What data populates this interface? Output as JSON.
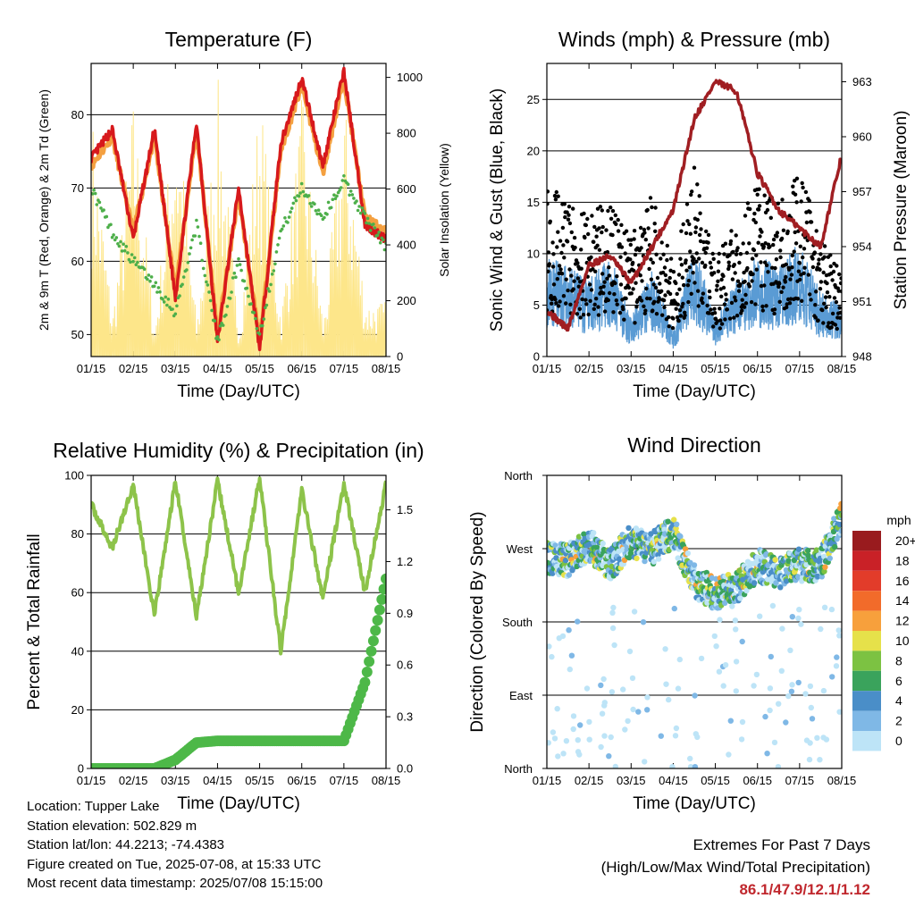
{
  "colors": {
    "temp2m": "#d7191c",
    "temp9m": "#f4a040",
    "dewpoint": "#4daf4a",
    "solar": "#fde68a",
    "wind": "#5a9bd4",
    "gust": "#000000",
    "pressure": "#a01e22",
    "rh": "#8dc34a",
    "precip": "#4db848",
    "extremes": "#c0272d"
  },
  "time_ticks": [
    "01/15",
    "02/15",
    "03/15",
    "04/15",
    "05/15",
    "06/15",
    "07/15",
    "08/15"
  ],
  "chart_data": [
    {
      "type": "line",
      "title": "Temperature (F)",
      "xlabel": "Time (Day/UTC)",
      "ylabel": "2m & 9m T (Red, Orange) & 2m Td (Green)",
      "y2label": "Solar Insolation (Yellow)",
      "ylim": [
        47,
        87
      ],
      "y2lim": [
        0,
        1050
      ],
      "yticks": [
        50,
        60,
        70,
        80
      ],
      "y2ticks": [
        0,
        200,
        400,
        600,
        800,
        1000
      ],
      "x": [
        0,
        0.5,
        1,
        1.5,
        2,
        2.5,
        3,
        3.5,
        4,
        4.5,
        5,
        5.5,
        6,
        6.5,
        7
      ],
      "series": [
        {
          "name": "2m T",
          "values": [
            74,
            78,
            63,
            78,
            55,
            79,
            49,
            70,
            48,
            76,
            85,
            73,
            86,
            65,
            63
          ]
        },
        {
          "name": "9m T",
          "values": [
            73,
            77,
            64,
            77,
            56,
            78,
            50,
            69,
            49,
            75,
            84,
            72,
            85,
            66,
            64
          ]
        },
        {
          "name": "2m Td",
          "values": [
            70,
            64,
            60,
            57,
            53,
            65,
            49,
            60,
            50,
            64,
            70,
            66,
            71,
            66,
            62
          ]
        },
        {
          "name": "Solar Insolation",
          "values": [
            900,
            150,
            950,
            100,
            990,
            120,
            1000,
            100,
            980,
            150,
            950,
            120,
            940,
            200,
            200
          ]
        }
      ]
    },
    {
      "type": "scatter",
      "title": "Winds (mph) & Pressure (mb)",
      "xlabel": "Time (Day/UTC)",
      "ylabel": "Sonic Wind & Gust (Blue, Black)",
      "y2label": "Station Pressure (Maroon)",
      "ylim": [
        0,
        28.5
      ],
      "y2lim": [
        948,
        964
      ],
      "yticks": [
        0,
        5,
        10,
        15,
        20,
        25
      ],
      "y2ticks": [
        948,
        951,
        954,
        957,
        960,
        963
      ],
      "x": [
        0,
        0.5,
        1,
        1.5,
        2,
        2.5,
        3,
        3.5,
        4,
        4.5,
        5,
        5.5,
        6,
        6.5,
        7
      ],
      "series": [
        {
          "name": "Sonic Wind",
          "values": [
            8,
            7,
            6,
            8,
            3,
            7,
            2,
            9,
            3,
            6,
            8,
            7,
            9,
            5,
            4
          ]
        },
        {
          "name": "Gust",
          "values": [
            15,
            13,
            12,
            14,
            10,
            14,
            8,
            16,
            8,
            12,
            15,
            13,
            16,
            10,
            7
          ]
        },
        {
          "name": "Station Pressure",
          "values": [
            950.5,
            949.5,
            953,
            953.5,
            952,
            954,
            956,
            961,
            963,
            962.5,
            958,
            956,
            955,
            954,
            959
          ]
        }
      ]
    },
    {
      "type": "line",
      "title": "Relative Humidity (%) & Precipitation (in)",
      "xlabel": "Time (Day/UTC)",
      "ylabel": "Percent & Total Rainfall",
      "ylim": [
        0,
        100
      ],
      "y2lim": [
        0,
        1.7
      ],
      "yticks": [
        0,
        20,
        40,
        60,
        80,
        100
      ],
      "y2ticks": [
        "0.0",
        "0.3",
        "0.6",
        "0.9",
        "1.2",
        "1.5"
      ],
      "x": [
        0,
        0.5,
        1,
        1.5,
        2,
        2.5,
        3,
        3.5,
        4,
        4.5,
        5,
        5.5,
        6,
        6.5,
        7
      ],
      "series": [
        {
          "name": "Relative Humidity",
          "values": [
            90,
            75,
            97,
            52,
            98,
            52,
            98,
            60,
            99,
            40,
            95,
            58,
            97,
            60,
            97
          ]
        },
        {
          "name": "Total Precipitation",
          "values": [
            0,
            0,
            0,
            0,
            0.05,
            0.15,
            0.16,
            0.16,
            0.16,
            0.16,
            0.16,
            0.16,
            0.16,
            0.5,
            1.1
          ]
        }
      ]
    },
    {
      "type": "scatter",
      "title": "Wind Direction",
      "xlabel": "Time (Day/UTC)",
      "ylabel": "Direction (Colored By Speed)",
      "yticks": [
        "North",
        "West",
        "South",
        "East",
        "North"
      ],
      "legend_title": "mph",
      "legend_labels": [
        "20+",
        "18",
        "16",
        "14",
        "12",
        "10",
        "8",
        "6",
        "4",
        "2",
        "0"
      ],
      "legend_colors": [
        "#991b1e",
        "#c92127",
        "#e23c2a",
        "#f26b2a",
        "#f7a03c",
        "#e6e14a",
        "#7cc242",
        "#3aa35c",
        "#4a8ec8",
        "#7fb8e6",
        "#bde4f7"
      ],
      "legend_position": "right",
      "x": [
        0,
        0.5,
        1,
        1.5,
        2,
        2.5,
        3,
        3.5,
        4,
        4.5,
        5,
        5.5,
        6,
        6.5,
        7
      ],
      "values_deg": [
        260,
        255,
        275,
        250,
        280,
        270,
        290,
        230,
        215,
        220,
        250,
        240,
        250,
        250,
        310
      ]
    }
  ],
  "info": {
    "location": "Location: Tupper Lake",
    "elevation": "Station elevation: 502.829 m",
    "latlon": "Station lat/lon: 44.2213; -74.4383",
    "created": "Figure created on Tue, 2025-07-08, at 15:33 UTC",
    "recent": "Most recent data timestamp: 2025/07/08 15:15:00"
  },
  "extremes": {
    "title": "Extremes For Past 7 Days",
    "subtitle": "(High/Low/Max Wind/Total Precipitation)",
    "values": "86.1/47.9/12.1/1.12"
  }
}
